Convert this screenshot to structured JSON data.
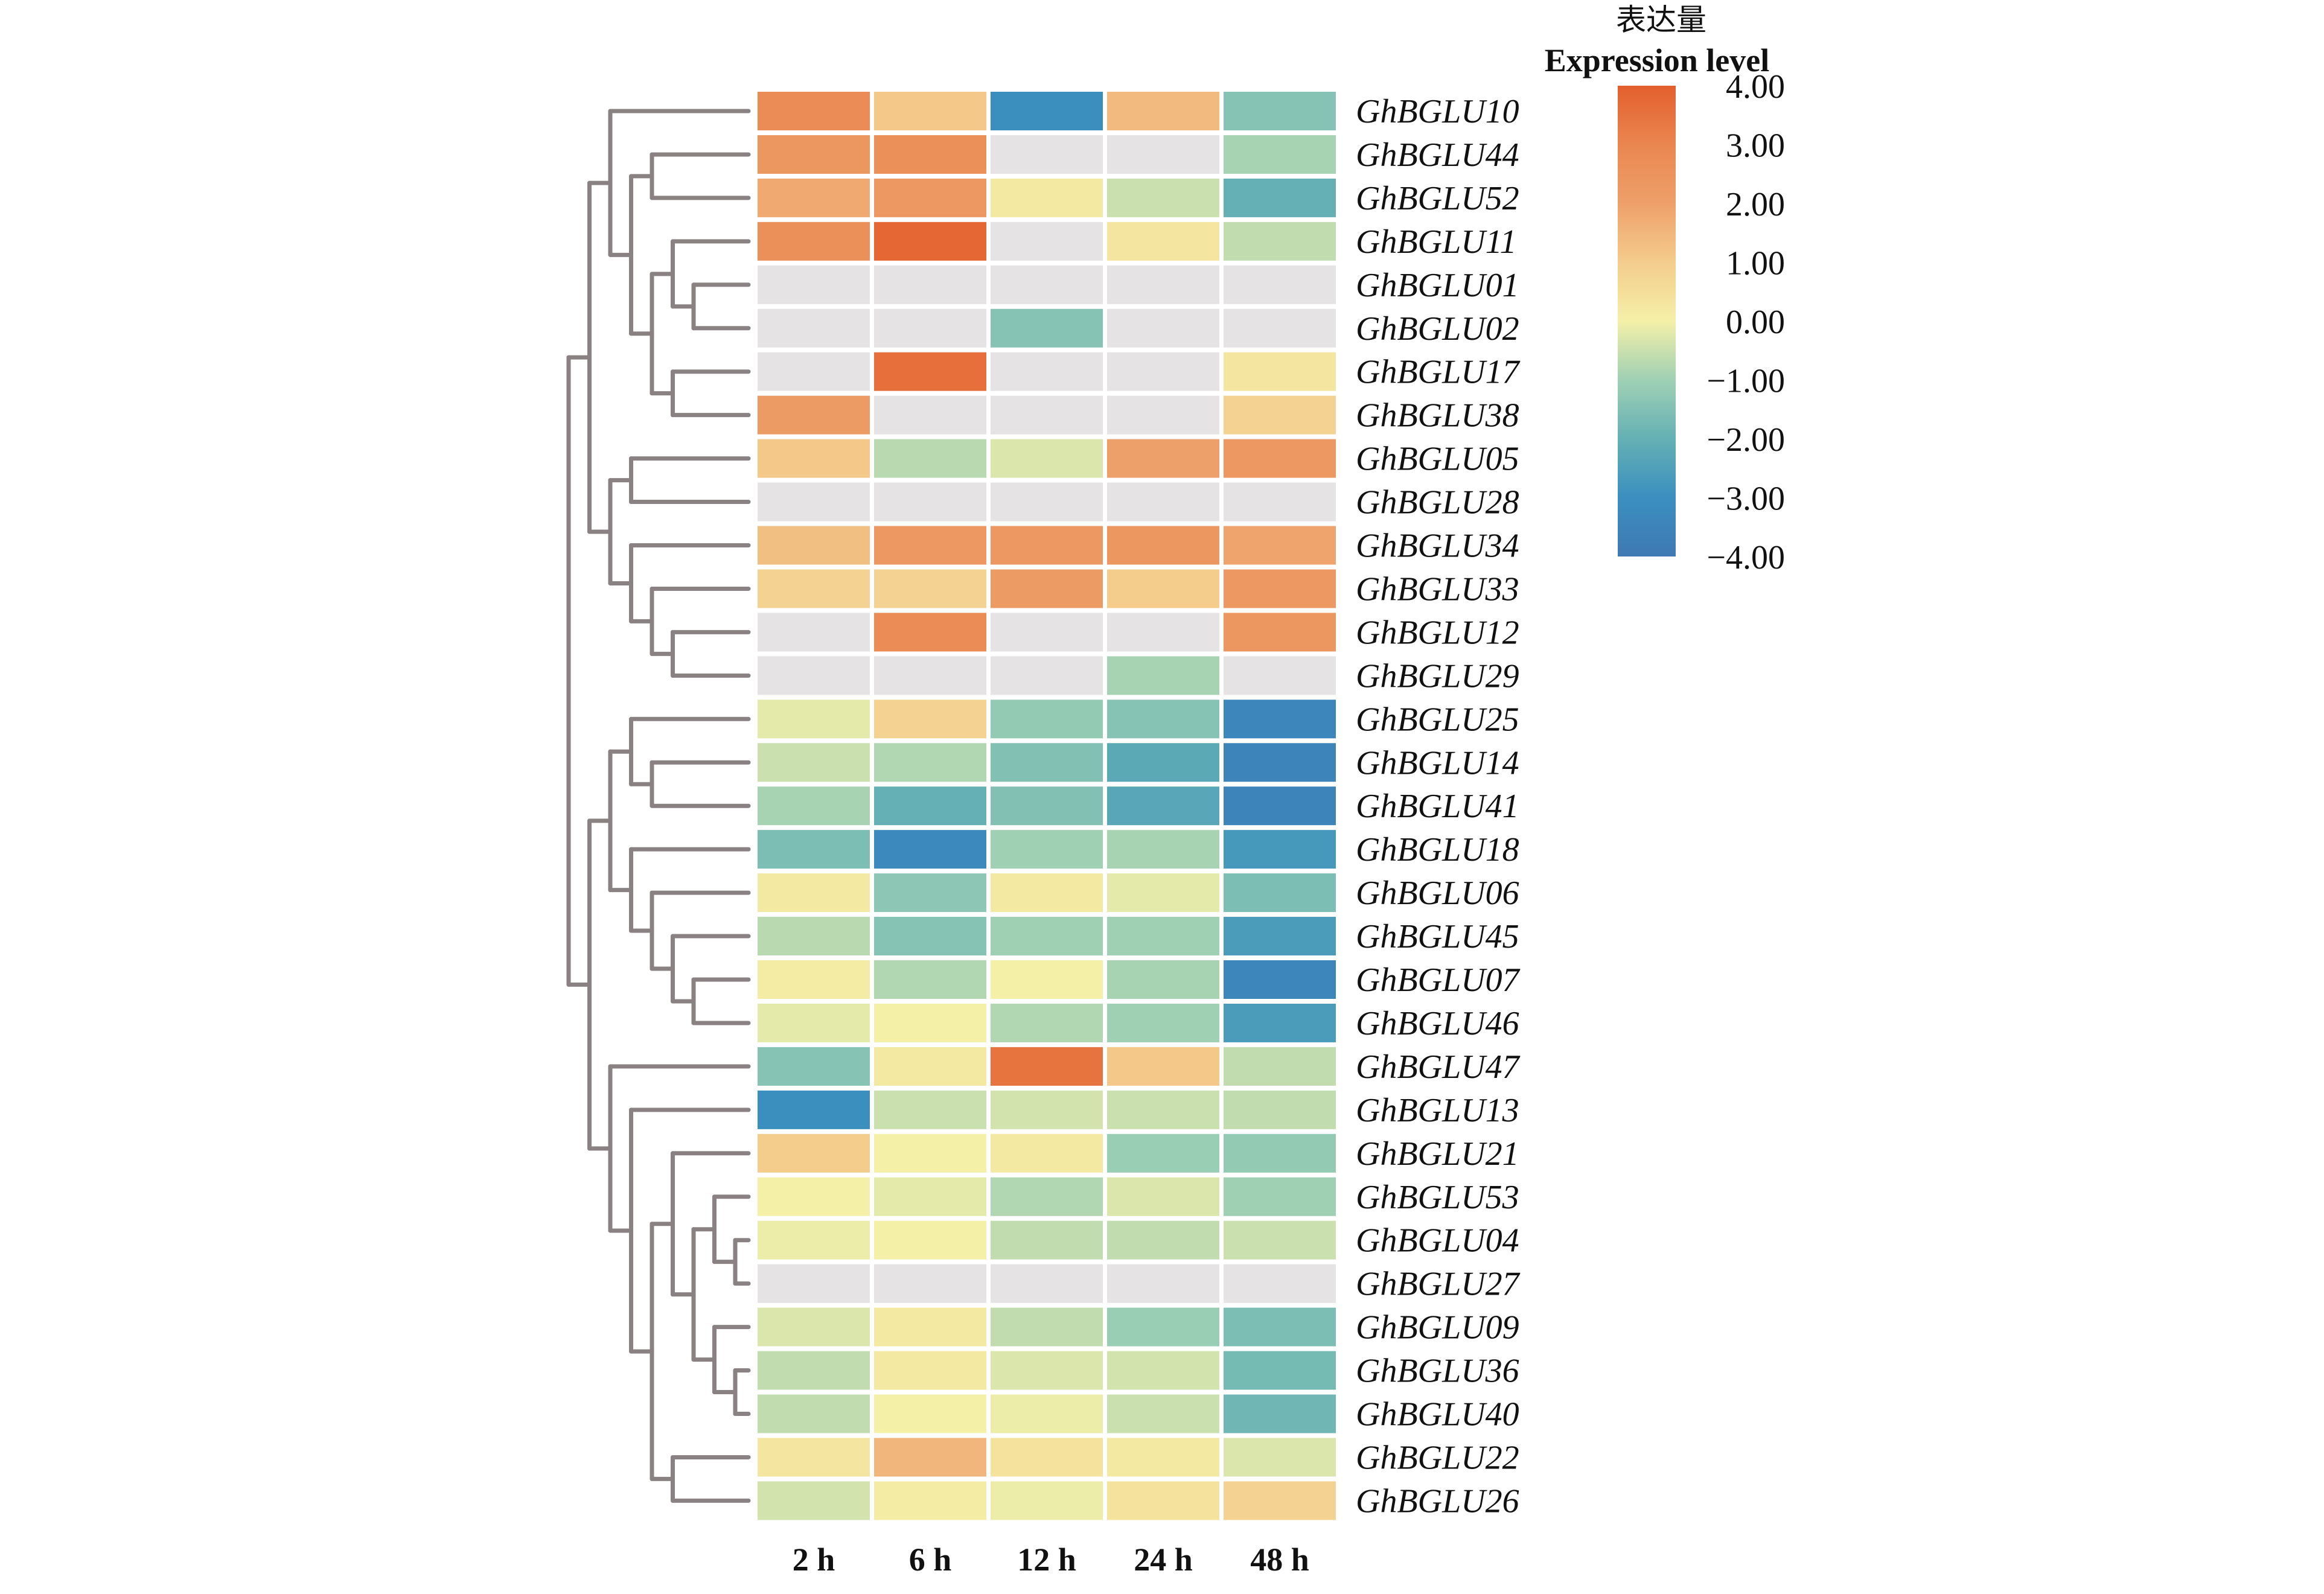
{
  "chart_data": {
    "type": "heatmap",
    "title": "",
    "legend": {
      "title_zh": "表达量",
      "title_en": "Expression level",
      "placement": "top-right",
      "min": -4,
      "max": 4,
      "ticks": [
        "4.00",
        "3.00",
        "2.00",
        "1.00",
        "0.00",
        "−1.00",
        "−2.00",
        "−3.00",
        "−4.00"
      ],
      "tick_values": [
        4,
        3,
        2,
        1,
        0,
        -1,
        -2,
        -3,
        -4
      ],
      "colorscale": [
        {
          "value": -4,
          "color": "#3f78b4"
        },
        {
          "value": -3,
          "color": "#3b8fbf"
        },
        {
          "value": -2,
          "color": "#64b0b4"
        },
        {
          "value": -1,
          "color": "#9fd0b4"
        },
        {
          "value": 0,
          "color": "#f4f0a8"
        },
        {
          "value": 1,
          "color": "#f4cc8c"
        },
        {
          "value": 2,
          "color": "#eea06a"
        },
        {
          "value": 3,
          "color": "#ea8650"
        },
        {
          "value": 4,
          "color": "#e35f2d"
        }
      ],
      "na_color": "#e5e3e4"
    },
    "columns": [
      "2 h",
      "6 h",
      "12 h",
      "24 h",
      "48 h"
    ],
    "rows": [
      "GhBGLU10",
      "GhBGLU44",
      "GhBGLU52",
      "GhBGLU11",
      "GhBGLU01",
      "GhBGLU02",
      "GhBGLU17",
      "GhBGLU38",
      "GhBGLU05",
      "GhBGLU28",
      "GhBGLU34",
      "GhBGLU33",
      "GhBGLU12",
      "GhBGLU29",
      "GhBGLU25",
      "GhBGLU14",
      "GhBGLU41",
      "GhBGLU18",
      "GhBGLU06",
      "GhBGLU45",
      "GhBGLU07",
      "GhBGLU46",
      "GhBGLU47",
      "GhBGLU13",
      "GhBGLU21",
      "GhBGLU53",
      "GhBGLU04",
      "GhBGLU27",
      "GhBGLU09",
      "GhBGLU36",
      "GhBGLU40",
      "GhBGLU22",
      "GhBGLU26"
    ],
    "values": [
      [
        2.8,
        1.1,
        -3.0,
        1.4,
        -1.4
      ],
      [
        2.4,
        2.6,
        null,
        null,
        -0.9
      ],
      [
        1.8,
        2.3,
        0.2,
        -0.5,
        -2.0
      ],
      [
        2.6,
        3.8,
        null,
        0.3,
        -0.6
      ],
      [
        null,
        null,
        null,
        null,
        null
      ],
      [
        null,
        null,
        -1.4,
        null,
        null
      ],
      [
        null,
        3.6,
        null,
        null,
        0.3
      ],
      [
        2.2,
        null,
        null,
        null,
        0.8
      ],
      [
        1.1,
        -0.7,
        -0.3,
        2.0,
        2.3
      ],
      [
        null,
        null,
        null,
        null,
        null
      ],
      [
        1.3,
        2.3,
        2.3,
        2.4,
        1.9
      ],
      [
        0.8,
        0.8,
        2.2,
        1.0,
        2.3
      ],
      [
        null,
        2.8,
        null,
        null,
        2.4
      ],
      [
        null,
        null,
        null,
        -0.9,
        null
      ],
      [
        -0.2,
        0.8,
        -1.2,
        -1.4,
        -3.4
      ],
      [
        -0.5,
        -0.8,
        -1.5,
        -2.2,
        -3.5
      ],
      [
        -0.9,
        -2.0,
        -1.5,
        -2.3,
        -3.5
      ],
      [
        -1.6,
        -3.2,
        -1.0,
        -0.9,
        -2.7
      ],
      [
        0.2,
        -1.3,
        0.2,
        -0.2,
        -1.6
      ],
      [
        -0.7,
        -1.4,
        -1.0,
        -1.0,
        -2.6
      ],
      [
        0.1,
        -0.8,
        0.0,
        -0.9,
        -3.4
      ],
      [
        -0.2,
        0.0,
        -0.8,
        -1.0,
        -2.6
      ],
      [
        -1.4,
        0.2,
        3.5,
        1.1,
        -0.6
      ],
      [
        -3.0,
        -0.5,
        -0.4,
        -0.5,
        -0.6
      ],
      [
        1.0,
        0.0,
        0.2,
        -1.1,
        -1.2
      ],
      [
        0.0,
        -0.2,
        -0.8,
        -0.3,
        -1.0
      ],
      [
        -0.1,
        0.0,
        -0.6,
        -0.6,
        -0.5
      ],
      [
        null,
        null,
        null,
        null,
        null
      ],
      [
        -0.3,
        0.2,
        -0.6,
        -1.1,
        -1.6
      ],
      [
        -0.6,
        0.2,
        -0.3,
        -0.4,
        -1.7
      ],
      [
        -0.6,
        0.0,
        -0.1,
        -0.5,
        -1.8
      ],
      [
        0.3,
        1.5,
        0.4,
        0.2,
        -0.3
      ],
      [
        -0.4,
        0.1,
        -0.1,
        0.4,
        0.8
      ]
    ],
    "row_dendrogram": [
      [
        [
          0,
          [
            [
              1,
              2
            ],
            [
              [
                3,
                [
                  4,
                  5
                ]
              ],
              [
                6,
                7
              ]
            ]
          ]
        ],
        [
          [
            8,
            9
          ],
          [
            10,
            [
              11,
              [
                12,
                13
              ]
            ]
          ]
        ]
      ],
      [
        [
          [
            14,
            [
              15,
              16
            ]
          ],
          [
            17,
            [
              18,
              [
                19,
                [
                  20,
                  21
                ]
              ]
            ]
          ]
        ],
        [
          22,
          [
            23,
            [
              [
                24,
                [
                  [
                    25,
                    [
                      26,
                      27
                    ]
                  ],
                  [
                    28,
                    [
                      29,
                      30
                    ]
                  ]
                ]
              ],
              [
                31,
                32
              ]
            ]
          ]
        ]
      ]
    ],
    "xlabel": "",
    "ylabel": "",
    "grid": false
  }
}
